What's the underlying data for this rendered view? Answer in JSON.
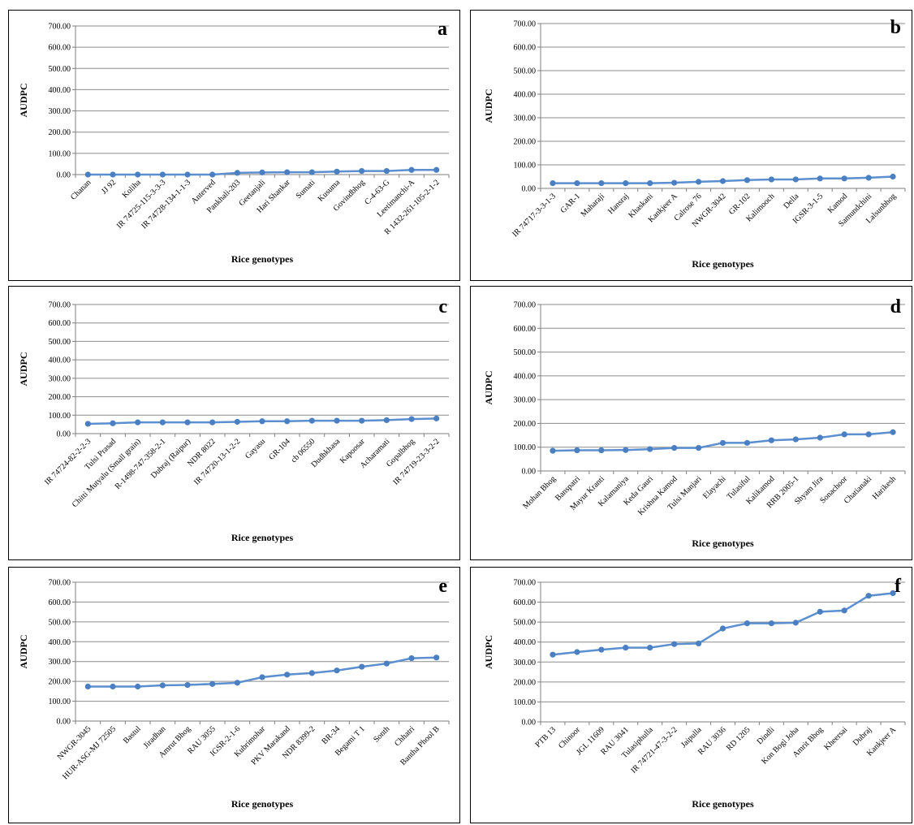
{
  "colors": {
    "line": "#5b8fd0",
    "marker": "#4a7fc1",
    "grid": "#8c8c8c",
    "axis": "#7f7f7f"
  },
  "chart_data": [
    {
      "type": "line",
      "panel": "a",
      "ylabel": "AUDPC",
      "xlabel": "Rice genotypes",
      "ylim": [
        0,
        700
      ],
      "yticks": [
        "0.00",
        "100.00",
        "200.00",
        "300.00",
        "400.00",
        "500.00",
        "600.00",
        "700.00"
      ],
      "categories": [
        "Chanan",
        "JJ 92",
        "Koliha",
        "IR 74725-115-3-3-3",
        "IR 74728-134-1-1-3",
        "Anterved",
        "Pankhali-203",
        "Geetanjali",
        "Hari Shankar",
        "Sumati",
        "Kusuma",
        "Govindbhog",
        "C-4-63-G",
        "Leetimanchi-A",
        "R 1432-261-105-2-1-2"
      ],
      "values": [
        0,
        0,
        0,
        0,
        0,
        0,
        8,
        10,
        11,
        11,
        14,
        17,
        17,
        22,
        22
      ]
    },
    {
      "type": "line",
      "panel": "b",
      "ylabel": "AUDPC",
      "xlabel": "Rice genotypes",
      "ylim": [
        0,
        700
      ],
      "yticks": [
        "0.00",
        "100.00",
        "200.00",
        "300.00",
        "400.00",
        "500.00",
        "600.00",
        "700.00"
      ],
      "categories": [
        "IR 74717-3-3-1-3",
        "GAR-1",
        "Maharaji",
        "Hansraj",
        "Khaskani",
        "Kankjeer A",
        "Calrose 76",
        "NWGR-3042",
        "GR-102",
        "Kalimooch",
        "Della",
        "IGSR-3-1-5",
        "Kamod",
        "Samundchini",
        "Lalsunbhog"
      ],
      "values": [
        22,
        22,
        22,
        22,
        22,
        24,
        28,
        31,
        35,
        38,
        38,
        42,
        42,
        45,
        50
      ]
    },
    {
      "type": "line",
      "panel": "c",
      "ylabel": "AUDPC",
      "xlabel": "Rice genotypes",
      "ylim": [
        0,
        700
      ],
      "yticks": [
        "0.00",
        "100.00",
        "200.00",
        "300.00",
        "400.00",
        "500.00",
        "600.00",
        "700.00"
      ],
      "categories": [
        "IR 74724-82-2-2-3",
        "Tulsi Prasad",
        "Chitti Mutyalu (Small grain)",
        "R-1498-747-358-2-1",
        "Dubraj (Raipur)",
        "NDR 8022",
        "IR 74720-13-1-2-2",
        "Gayasu",
        "GR-104",
        "cb 06550",
        "Dudhkhasa",
        "Kapoosar",
        "Acharamati",
        "Gopalbhog",
        "IR 74719-23-3-2-2"
      ],
      "values": [
        53,
        56,
        61,
        61,
        61,
        61,
        64,
        67,
        67,
        70,
        70,
        70,
        73,
        79,
        82
      ]
    },
    {
      "type": "line",
      "panel": "d",
      "ylabel": "AUDPC",
      "xlabel": "Rice genotypes",
      "ylim": [
        0,
        700
      ],
      "yticks": [
        "0.00",
        "100.00",
        "200.00",
        "300.00",
        "400.00",
        "500.00",
        "600.00",
        "700.00"
      ],
      "categories": [
        "Mohan Bhog",
        "Banspatri",
        "Mayur Kranti",
        "Kalamaniya",
        "Keda Gauri",
        "Krishna Kamod",
        "Tulsi Manjari",
        "Elayachi",
        "Tulasiful",
        "Kalikamod",
        "RRB 2005-1",
        "Shyam Jira",
        "Sonachoor",
        "Chatianaki",
        "Harikesh"
      ],
      "values": [
        85,
        87,
        87,
        88,
        92,
        97,
        97,
        118,
        118,
        129,
        133,
        140,
        154,
        154,
        163
      ]
    },
    {
      "type": "line",
      "panel": "e",
      "ylabel": "AUDPC",
      "xlabel": "Rice genotypes",
      "ylim": [
        0,
        700
      ],
      "yticks": [
        "0.00",
        "100.00",
        "200.00",
        "300.00",
        "400.00",
        "500.00",
        "600.00",
        "700.00"
      ],
      "categories": [
        "NWGR-3045",
        "HUR-ASG-MJ 72505",
        "Bastul",
        "Jiradhan",
        "Amrut Bhog",
        "RAU 3055",
        "IGSR-2-1-6",
        "Kubrimohar",
        "PKV Marakand",
        "NDR 8399-2",
        "BR-34",
        "Begami T 1",
        "Sonth",
        "Chhatri",
        "Bantha Phool B"
      ],
      "values": [
        174,
        174,
        174,
        180,
        182,
        187,
        193,
        221,
        234,
        242,
        255,
        274,
        290,
        317,
        320
      ]
    },
    {
      "type": "line",
      "panel": "f",
      "ylabel": "AUDPC",
      "xlabel": "Rice genotypes",
      "ylim": [
        0,
        700
      ],
      "yticks": [
        "0.00",
        "100.00",
        "200.00",
        "300.00",
        "400.00",
        "500.00",
        "600.00",
        "700.00"
      ],
      "categories": [
        "PTB 13",
        "Chinoor",
        "JGL 11609",
        "RAU 3041",
        "Tulasiphulla",
        "IR 74721-47-3-2-2",
        "Jaipulla",
        "RAU 3036",
        "RD 1205",
        "Dindli",
        "Kon Bogi Joha",
        "Amrit Bhog",
        "Kheersai",
        "Dubraj",
        "Kankjeer A"
      ],
      "values": [
        337,
        350,
        362,
        372,
        372,
        390,
        393,
        468,
        494,
        494,
        497,
        552,
        558,
        632,
        645
      ]
    }
  ]
}
